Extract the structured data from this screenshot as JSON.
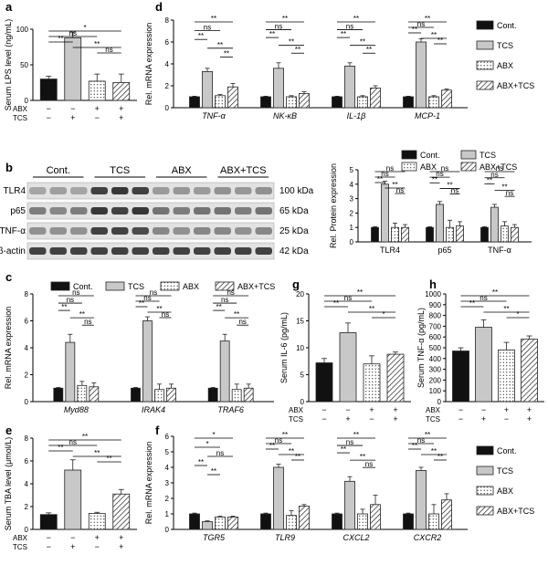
{
  "conditions": [
    "Cont.",
    "TCS",
    "ABX",
    "ABX+TCS"
  ],
  "condition_styles": {
    "Cont.": {
      "fill": "#111111",
      "pattern": "solid"
    },
    "TCS": {
      "fill": "#c8c8c8",
      "pattern": "solid"
    },
    "ABX": {
      "fill": "#ffffff",
      "pattern": "dots"
    },
    "ABX+TCS": {
      "fill": "#ffffff",
      "pattern": "hatch"
    }
  },
  "treatment_table": {
    "ABX": [
      "−",
      "−",
      "+",
      "+"
    ],
    "TCS": [
      "−",
      "+",
      "−",
      "+"
    ]
  },
  "blot": {
    "panel_letter": "b",
    "group_labels": [
      "Cont.",
      "TCS",
      "ABX",
      "ABX+TCS"
    ],
    "rows": [
      {
        "protein": "TLR4",
        "kda": "100 kDa"
      },
      {
        "protein": "p65",
        "kda": "65 kDa"
      },
      {
        "protein": "TNF-α",
        "kda": "25 kDa"
      },
      {
        "protein": "β-actin",
        "kda": "42 kDa"
      }
    ]
  },
  "chart_data": [
    {
      "panel": "a",
      "type": "bar",
      "ylabel": "Serum LPS level (ng/mL)",
      "ylim": [
        0,
        100
      ],
      "yticks": [
        0,
        50,
        100
      ],
      "legend": false,
      "treatment_rows": true,
      "series": [
        {
          "name": "Serum LPS",
          "values": [
            30,
            88,
            27,
            25
          ],
          "errors": [
            4,
            8,
            10,
            12
          ]
        }
      ],
      "annotations": [
        {
          "from": 0,
          "to": 3,
          "label": "*"
        },
        {
          "from": 0,
          "to": 2,
          "label": "ns"
        },
        {
          "from": 0,
          "to": 1,
          "label": "**"
        },
        {
          "from": 1,
          "to": 3,
          "label": "**"
        },
        {
          "from": 2,
          "to": 3,
          "label": "ns"
        }
      ]
    },
    {
      "panel": "d",
      "type": "bar",
      "ylabel": "Rel. mRNA expression",
      "ylim": [
        0,
        8
      ],
      "yticks": [
        0,
        2,
        4,
        6,
        8
      ],
      "legend": "right",
      "categories": [
        "TNF-α",
        "NK-κB",
        "IL-1β",
        "MCP-1"
      ],
      "series": [
        {
          "name": "Cont.",
          "values": [
            1.0,
            1.0,
            1.0,
            1.0
          ],
          "errors": [
            0.05,
            0.05,
            0.05,
            0.05
          ]
        },
        {
          "name": "TCS",
          "values": [
            3.3,
            3.6,
            3.8,
            6.0
          ],
          "errors": [
            0.3,
            0.5,
            0.3,
            0.3
          ]
        },
        {
          "name": "ABX",
          "values": [
            1.1,
            1.0,
            1.0,
            1.0
          ],
          "errors": [
            0.1,
            0.1,
            0.1,
            0.1
          ]
        },
        {
          "name": "ABX+TCS",
          "values": [
            1.9,
            1.3,
            1.8,
            1.6
          ],
          "errors": [
            0.3,
            0.15,
            0.2,
            0.1
          ]
        }
      ],
      "annotations": [
        {
          "group": 0,
          "from": 0,
          "to": 3,
          "label": "**"
        },
        {
          "group": 0,
          "from": 0,
          "to": 2,
          "label": "ns"
        },
        {
          "group": 0,
          "from": 0,
          "to": 1,
          "label": "**"
        },
        {
          "group": 0,
          "from": 1,
          "to": 3,
          "label": "**"
        },
        {
          "group": 0,
          "from": 2,
          "to": 3,
          "label": "**"
        },
        {
          "group": 1,
          "from": 0,
          "to": 3,
          "label": "**"
        },
        {
          "group": 1,
          "from": 0,
          "to": 2,
          "label": "ns"
        },
        {
          "group": 1,
          "from": 0,
          "to": 1,
          "label": "**"
        },
        {
          "group": 1,
          "from": 1,
          "to": 3,
          "label": "**"
        },
        {
          "group": 1,
          "from": 2,
          "to": 3,
          "label": "**"
        },
        {
          "group": 2,
          "from": 0,
          "to": 3,
          "label": "**"
        },
        {
          "group": 2,
          "from": 0,
          "to": 2,
          "label": "ns"
        },
        {
          "group": 2,
          "from": 0,
          "to": 1,
          "label": "**"
        },
        {
          "group": 2,
          "from": 1,
          "to": 3,
          "label": "**"
        },
        {
          "group": 2,
          "from": 2,
          "to": 3,
          "label": "**"
        },
        {
          "group": 3,
          "from": 0,
          "to": 3,
          "label": "**"
        },
        {
          "group": 3,
          "from": 0,
          "to": 2,
          "label": "ns"
        },
        {
          "group": 3,
          "from": 0,
          "to": 1,
          "label": "**"
        },
        {
          "group": 3,
          "from": 1,
          "to": 3,
          "label": "**"
        },
        {
          "group": 3,
          "from": 2,
          "to": 3,
          "label": "**"
        }
      ]
    },
    {
      "panel": "b-quant",
      "type": "bar",
      "ylabel": "Rel. Protein expression",
      "ylim": [
        0,
        5
      ],
      "yticks": [
        0,
        1,
        2,
        3,
        4,
        5
      ],
      "legend": "top",
      "categories": [
        "TLR4",
        "p65",
        "TNF-α"
      ],
      "series": [
        {
          "name": "Cont.",
          "values": [
            1.0,
            1.0,
            1.0
          ],
          "errors": [
            0.05,
            0.05,
            0.05
          ]
        },
        {
          "name": "TCS",
          "values": [
            4.0,
            2.6,
            2.4
          ],
          "errors": [
            0.2,
            0.2,
            0.2
          ]
        },
        {
          "name": "ABX",
          "values": [
            1.0,
            1.0,
            1.1
          ],
          "errors": [
            0.3,
            0.5,
            0.3
          ]
        },
        {
          "name": "ABX+TCS",
          "values": [
            1.0,
            1.1,
            1.0
          ],
          "errors": [
            0.2,
            0.3,
            0.2
          ]
        }
      ],
      "annotations": [
        {
          "group": 0,
          "from": 0,
          "to": 3,
          "label": "ns"
        },
        {
          "group": 0,
          "from": 0,
          "to": 2,
          "label": "ns"
        },
        {
          "group": 0,
          "from": 0,
          "to": 1,
          "label": "**"
        },
        {
          "group": 0,
          "from": 1,
          "to": 3,
          "label": "**"
        },
        {
          "group": 0,
          "from": 2,
          "to": 3,
          "label": "ns"
        },
        {
          "group": 1,
          "from": 0,
          "to": 3,
          "label": "ns"
        },
        {
          "group": 1,
          "from": 0,
          "to": 2,
          "label": "ns"
        },
        {
          "group": 1,
          "from": 0,
          "to": 1,
          "label": "**"
        },
        {
          "group": 1,
          "from": 1,
          "to": 3,
          "label": "**"
        },
        {
          "group": 1,
          "from": 2,
          "to": 3,
          "label": "ns"
        },
        {
          "group": 2,
          "from": 0,
          "to": 3,
          "label": "ns"
        },
        {
          "group": 2,
          "from": 0,
          "to": 2,
          "label": "ns"
        },
        {
          "group": 2,
          "from": 0,
          "to": 1,
          "label": "**"
        },
        {
          "group": 2,
          "from": 1,
          "to": 3,
          "label": "**"
        },
        {
          "group": 2,
          "from": 2,
          "to": 3,
          "label": "ns"
        }
      ]
    },
    {
      "panel": "c",
      "type": "bar",
      "ylabel": "Rel. mRNA expression",
      "ylim": [
        0,
        8
      ],
      "yticks": [
        0,
        2,
        4,
        6,
        8
      ],
      "legend": "top",
      "categories": [
        "Myd88",
        "IRAK4",
        "TRAF6"
      ],
      "series": [
        {
          "name": "Cont.",
          "values": [
            1.0,
            1.0,
            1.0
          ],
          "errors": [
            0.05,
            0.05,
            0.05
          ]
        },
        {
          "name": "TCS",
          "values": [
            4.4,
            6.0,
            4.5
          ],
          "errors": [
            0.6,
            0.3,
            0.5
          ]
        },
        {
          "name": "ABX",
          "values": [
            1.2,
            0.9,
            0.9
          ],
          "errors": [
            0.3,
            0.4,
            0.4
          ]
        },
        {
          "name": "ABX+TCS",
          "values": [
            1.1,
            1.0,
            1.0
          ],
          "errors": [
            0.3,
            0.3,
            0.3
          ]
        }
      ],
      "annotations": [
        {
          "group": 0,
          "from": 0,
          "to": 3,
          "label": "ns"
        },
        {
          "group": 0,
          "from": 0,
          "to": 2,
          "label": "ns"
        },
        {
          "group": 0,
          "from": 0,
          "to": 1,
          "label": "**"
        },
        {
          "group": 0,
          "from": 1,
          "to": 3,
          "label": "**"
        },
        {
          "group": 0,
          "from": 2,
          "to": 3,
          "label": "ns"
        },
        {
          "group": 1,
          "from": 0,
          "to": 3,
          "label": "ns"
        },
        {
          "group": 1,
          "from": 0,
          "to": 2,
          "label": "ns"
        },
        {
          "group": 1,
          "from": 0,
          "to": 1,
          "label": "**"
        },
        {
          "group": 1,
          "from": 1,
          "to": 3,
          "label": "**"
        },
        {
          "group": 1,
          "from": 2,
          "to": 3,
          "label": "ns"
        },
        {
          "group": 2,
          "from": 0,
          "to": 3,
          "label": "ns"
        },
        {
          "group": 2,
          "from": 0,
          "to": 2,
          "label": "ns"
        },
        {
          "group": 2,
          "from": 0,
          "to": 1,
          "label": "**"
        },
        {
          "group": 2,
          "from": 1,
          "to": 3,
          "label": "**"
        },
        {
          "group": 2,
          "from": 2,
          "to": 3,
          "label": "ns"
        }
      ]
    },
    {
      "panel": "g",
      "type": "bar",
      "ylabel": "Serum IL-6 (pg/mL)",
      "ylim": [
        0,
        20
      ],
      "yticks": [
        0,
        5,
        10,
        15,
        20
      ],
      "legend": false,
      "treatment_rows": true,
      "series": [
        {
          "name": "Serum IL-6",
          "values": [
            7.2,
            12.8,
            7.0,
            8.8
          ],
          "errors": [
            0.8,
            1.8,
            1.5,
            0.4
          ]
        }
      ],
      "annotations": [
        {
          "from": 0,
          "to": 3,
          "label": "**"
        },
        {
          "from": 0,
          "to": 2,
          "label": "ns"
        },
        {
          "from": 0,
          "to": 1,
          "label": "**"
        },
        {
          "from": 1,
          "to": 3,
          "label": "**"
        },
        {
          "from": 2,
          "to": 3,
          "label": "*"
        }
      ]
    },
    {
      "panel": "h",
      "type": "bar",
      "ylabel": "Serum TNF-α (pg/mL)",
      "ylim": [
        0,
        1000
      ],
      "yticks": [
        0,
        100,
        200,
        300,
        400,
        500,
        600,
        700,
        800,
        900,
        1000
      ],
      "legend": false,
      "treatment_rows": true,
      "series": [
        {
          "name": "Serum TNF-α",
          "values": [
            470,
            690,
            480,
            580
          ],
          "errors": [
            30,
            70,
            70,
            30
          ]
        }
      ],
      "annotations": [
        {
          "from": 0,
          "to": 3,
          "label": "**"
        },
        {
          "from": 0,
          "to": 2,
          "label": "ns"
        },
        {
          "from": 0,
          "to": 1,
          "label": "**"
        },
        {
          "from": 1,
          "to": 3,
          "label": "**"
        },
        {
          "from": 2,
          "to": 3,
          "label": "*"
        }
      ]
    },
    {
      "panel": "e",
      "type": "bar",
      "ylabel": "Serum TBA level (μmol/L)",
      "ylim": [
        0,
        8
      ],
      "yticks": [
        0,
        2,
        4,
        6,
        8
      ],
      "legend": false,
      "treatment_rows": true,
      "series": [
        {
          "name": "Serum TBA",
          "values": [
            1.3,
            5.2,
            1.4,
            3.1
          ],
          "errors": [
            0.15,
            0.9,
            0.1,
            0.4
          ]
        }
      ],
      "annotations": [
        {
          "from": 0,
          "to": 3,
          "label": "**"
        },
        {
          "from": 0,
          "to": 2,
          "label": "ns"
        },
        {
          "from": 0,
          "to": 1,
          "label": "**"
        },
        {
          "from": 1,
          "to": 3,
          "label": "**"
        },
        {
          "from": 2,
          "to": 3,
          "label": "**"
        }
      ]
    },
    {
      "panel": "f",
      "type": "bar",
      "ylabel": "Rel. mRNA expression",
      "ylim": [
        0,
        6
      ],
      "yticks": [
        0,
        1,
        2,
        3,
        4,
        5,
        6
      ],
      "legend": "right",
      "categories": [
        "TGR5",
        "TLR9",
        "CXCL2",
        "CXCR2"
      ],
      "series": [
        {
          "name": "Cont.",
          "values": [
            1.0,
            1.0,
            1.0,
            1.0
          ],
          "errors": [
            0.05,
            0.05,
            0.05,
            0.05
          ]
        },
        {
          "name": "TCS",
          "values": [
            0.5,
            4.0,
            3.1,
            3.8
          ],
          "errors": [
            0.05,
            0.2,
            0.3,
            0.2
          ]
        },
        {
          "name": "ABX",
          "values": [
            0.8,
            0.9,
            1.0,
            1.0
          ],
          "errors": [
            0.05,
            0.3,
            0.3,
            0.6
          ]
        },
        {
          "name": "ABX+TCS",
          "values": [
            0.8,
            1.5,
            1.6,
            1.9
          ],
          "errors": [
            0.05,
            0.1,
            0.6,
            0.4
          ]
        }
      ],
      "annotations": [
        {
          "group": 0,
          "from": 0,
          "to": 3,
          "label": "*"
        },
        {
          "group": 0,
          "from": 0,
          "to": 2,
          "label": "*"
        },
        {
          "group": 0,
          "from": 1,
          "to": 3,
          "label": "ns"
        },
        {
          "group": 0,
          "from": 0,
          "to": 1,
          "label": "**"
        },
        {
          "group": 0,
          "from": 1,
          "to": 2,
          "label": "**"
        },
        {
          "group": 1,
          "from": 0,
          "to": 3,
          "label": "**"
        },
        {
          "group": 1,
          "from": 0,
          "to": 2,
          "label": "ns"
        },
        {
          "group": 1,
          "from": 0,
          "to": 1,
          "label": "**"
        },
        {
          "group": 1,
          "from": 1,
          "to": 3,
          "label": "**"
        },
        {
          "group": 1,
          "from": 2,
          "to": 3,
          "label": "**"
        },
        {
          "group": 2,
          "from": 0,
          "to": 3,
          "label": "**"
        },
        {
          "group": 2,
          "from": 0,
          "to": 2,
          "label": "ns"
        },
        {
          "group": 2,
          "from": 0,
          "to": 1,
          "label": "**"
        },
        {
          "group": 2,
          "from": 1,
          "to": 3,
          "label": "**"
        },
        {
          "group": 2,
          "from": 2,
          "to": 3,
          "label": "ns"
        },
        {
          "group": 3,
          "from": 0,
          "to": 3,
          "label": "**"
        },
        {
          "group": 3,
          "from": 0,
          "to": 2,
          "label": "ns"
        },
        {
          "group": 3,
          "from": 0,
          "to": 1,
          "label": "**"
        },
        {
          "group": 3,
          "from": 1,
          "to": 3,
          "label": "**"
        },
        {
          "group": 3,
          "from": 2,
          "to": 3,
          "label": "**"
        }
      ]
    }
  ]
}
